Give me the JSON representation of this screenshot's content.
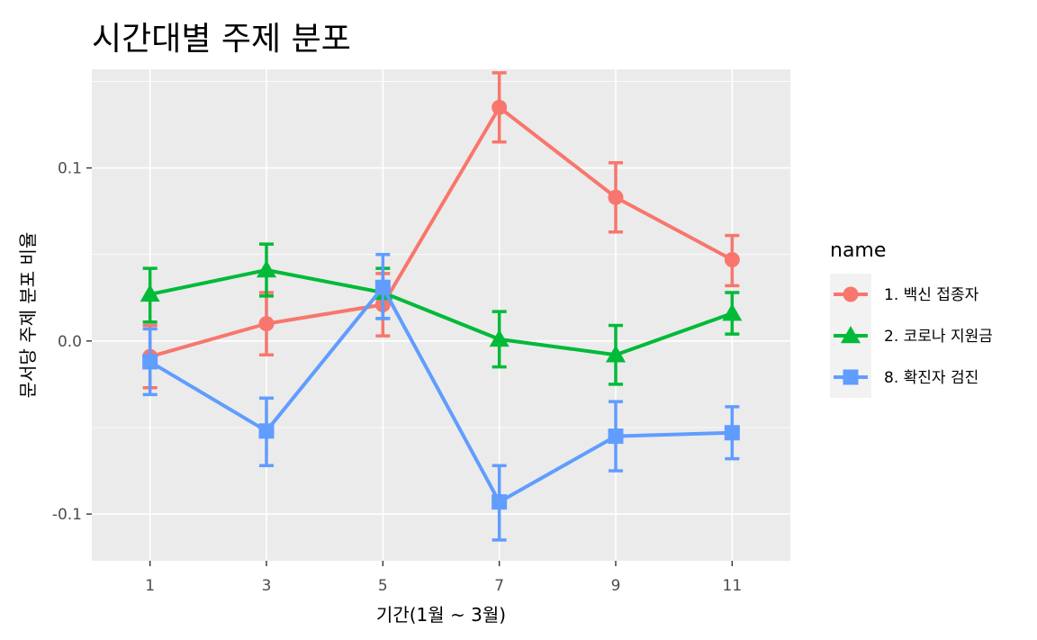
{
  "chart_data": {
    "type": "line",
    "title": "시간대별 주제 분포",
    "xlabel": "기간(1월 ~ 3월)",
    "ylabel": "문서당 주제 분포 비율",
    "x": [
      1,
      3,
      5,
      7,
      9,
      11
    ],
    "xlim": [
      0,
      12
    ],
    "ylim": [
      -0.127,
      0.157
    ],
    "xticks": [
      "1",
      "3",
      "5",
      "7",
      "9",
      "11"
    ],
    "yticks": [
      {
        "value": 0.1,
        "label": "0.1"
      },
      {
        "value": 0.0,
        "label": "0.0"
      },
      {
        "value": -0.1,
        "label": "-0.1"
      }
    ],
    "grid": true,
    "legend_title": "name",
    "legend_position": "right",
    "series": [
      {
        "name": "1. 백신 접종자",
        "color": "#F8766D",
        "marker": "circle",
        "values": [
          -0.009,
          0.01,
          0.021,
          0.135,
          0.083,
          0.047
        ],
        "error_low": [
          -0.027,
          -0.008,
          0.003,
          0.115,
          0.063,
          0.032
        ],
        "error_high": [
          0.009,
          0.028,
          0.039,
          0.155,
          0.103,
          0.061
        ]
      },
      {
        "name": "2. 코로나 지원금",
        "color": "#00BA38",
        "marker": "triangle",
        "values": [
          0.027,
          0.041,
          0.028,
          0.001,
          -0.008,
          0.016
        ],
        "error_low": [
          0.011,
          0.026,
          0.013,
          -0.015,
          -0.025,
          0.004
        ],
        "error_high": [
          0.042,
          0.056,
          0.042,
          0.017,
          0.009,
          0.028
        ]
      },
      {
        "name": "8. 확진자 검진",
        "color": "#619CFF",
        "marker": "square",
        "values": [
          -0.012,
          -0.052,
          0.031,
          -0.093,
          -0.055,
          -0.053
        ],
        "error_low": [
          -0.031,
          -0.072,
          0.013,
          -0.115,
          -0.075,
          -0.068
        ],
        "error_high": [
          0.007,
          -0.033,
          0.05,
          -0.072,
          -0.035,
          -0.038
        ]
      }
    ]
  }
}
